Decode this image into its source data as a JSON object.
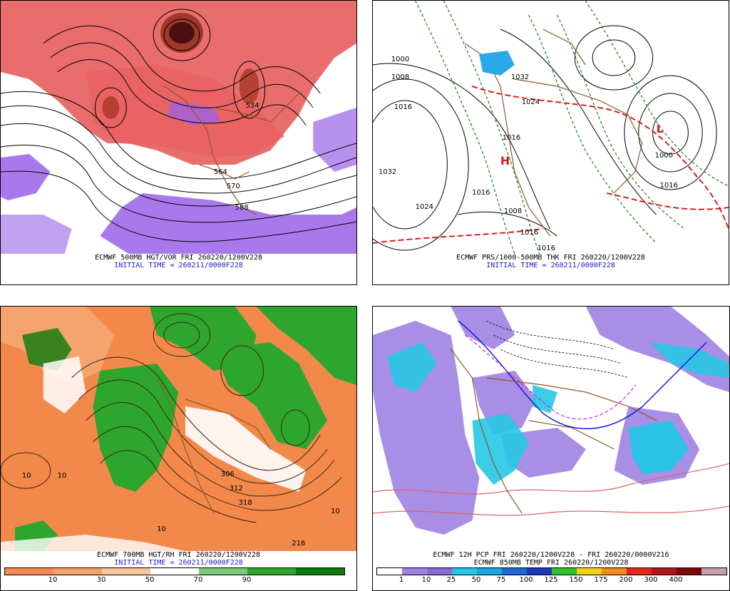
{
  "panels": [
    {
      "title": "ECMWF 500MB HGT/VOR FRI 260220/1200V228",
      "initial": "INITIAL TIME = 260211/0000F228",
      "contour_labels": [
        "564",
        "570",
        "588",
        "534"
      ]
    },
    {
      "title": "ECMWF PRS/1000-500MB THK FRI 260220/1200V228",
      "initial": "INITIAL TIME = 260211/0000F228",
      "contour_labels": [
        "1032",
        "1024",
        "1016",
        "1008",
        "1000",
        "1032",
        "1024",
        "1016",
        "1000",
        "1016",
        "1016",
        "1008",
        "1016",
        "1016"
      ]
    },
    {
      "title": "ECMWF 700MB HGT/RH FRI 260220/1200V228",
      "initial": "INITIAL TIME = 260211/0000F228",
      "contour_labels": [
        "306",
        "312",
        "318",
        "10",
        "10",
        "10",
        "10",
        "216"
      ],
      "colorbar": {
        "colors": [
          "#f28c50",
          "#f5a46e",
          "#f8c79e",
          "#ffffff",
          "#7bc97b",
          "#2ea62e",
          "#0a7a0a"
        ],
        "labels": [
          "10",
          "30",
          "50",
          "70",
          "90"
        ]
      }
    },
    {
      "title": "ECMWF 12H PCP FRI 260220/1200V228 - FRI 260220/0000V216",
      "subtitle": "ECMWF 850MB TEMP FRI 260220/1200V228",
      "colorbar": {
        "colors": [
          "#ffffff",
          "#9b84e0",
          "#8a6ad6",
          "#26c6e6",
          "#1aa6e0",
          "#1e6ad2",
          "#1c3ab8",
          "#2ec22e",
          "#f2d21e",
          "#f28c1e",
          "#e0281e",
          "#b0141e",
          "#7a0a0a",
          "#c8a0b4"
        ],
        "labels": [
          "1",
          "10",
          "25",
          "50",
          "75",
          "100",
          "125",
          "150",
          "175",
          "200",
          "300",
          "400"
        ]
      }
    }
  ]
}
